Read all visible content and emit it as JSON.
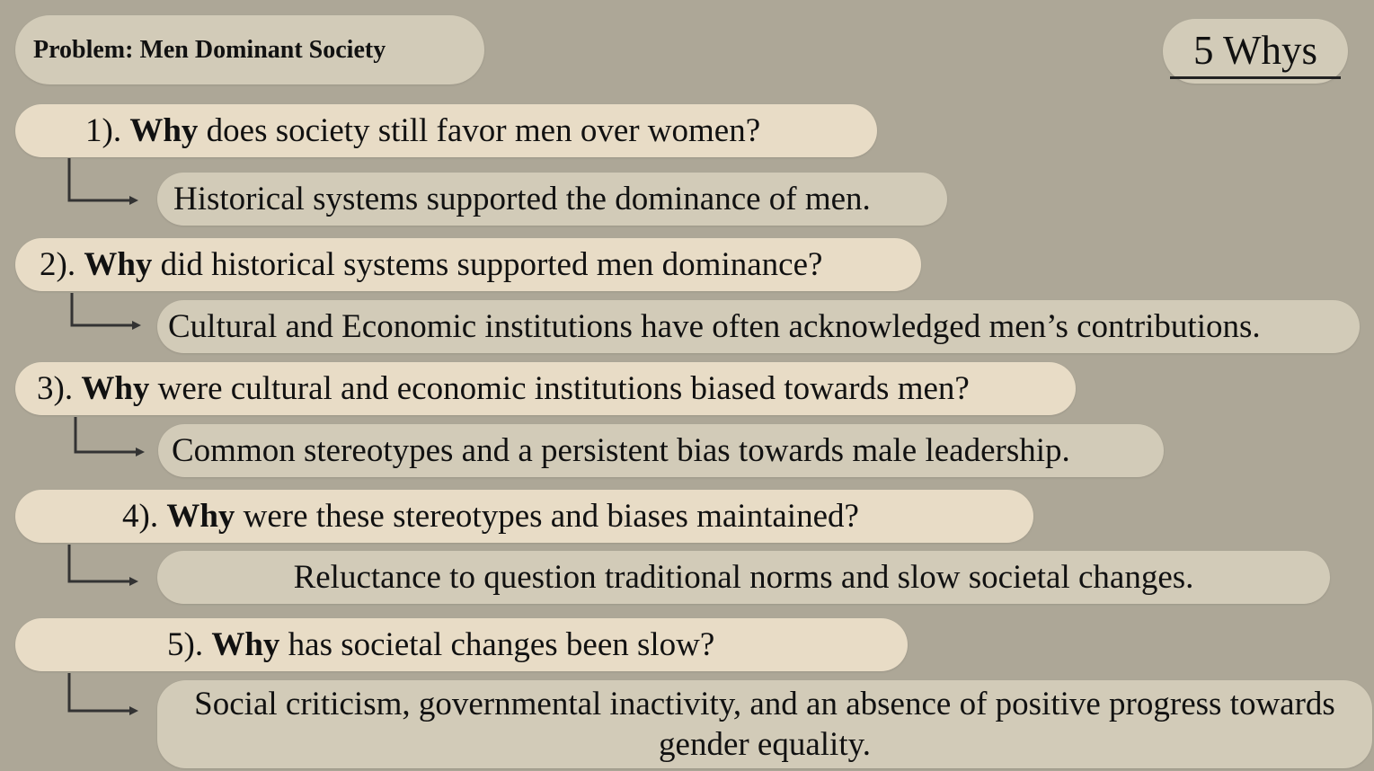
{
  "problem": "Problem: Men Dominant Society",
  "title": "5 Whys",
  "whys": [
    {
      "number": "1).",
      "why": "Why",
      "question": "does society still favor men over women?",
      "answer": "Historical systems supported the dominance of men."
    },
    {
      "number": "2).",
      "why": "Why",
      "question": "did historical systems supported men dominance?",
      "answer": "Cultural and Economic institutions have often acknowledged men’s contributions."
    },
    {
      "number": "3).",
      "why": "Why",
      "question": "were cultural and economic institutions biased towards men?",
      "answer": "Common stereotypes and a persistent bias towards male leadership."
    },
    {
      "number": "4).",
      "why": "Why",
      "question": "were these stereotypes and biases maintained?",
      "answer": "Reluctance to question traditional norms and slow societal changes."
    },
    {
      "number": "5).",
      "why": "Why",
      "question": "has societal changes been slow?",
      "answer": "Social criticism, governmental inactivity, and an absence of positive progress towards gender equality."
    }
  ],
  "colors": {
    "background": "#ada797",
    "question_fill": "#e8dcc6",
    "answer_fill": "#d2cbb8",
    "arrow": "#333333"
  }
}
